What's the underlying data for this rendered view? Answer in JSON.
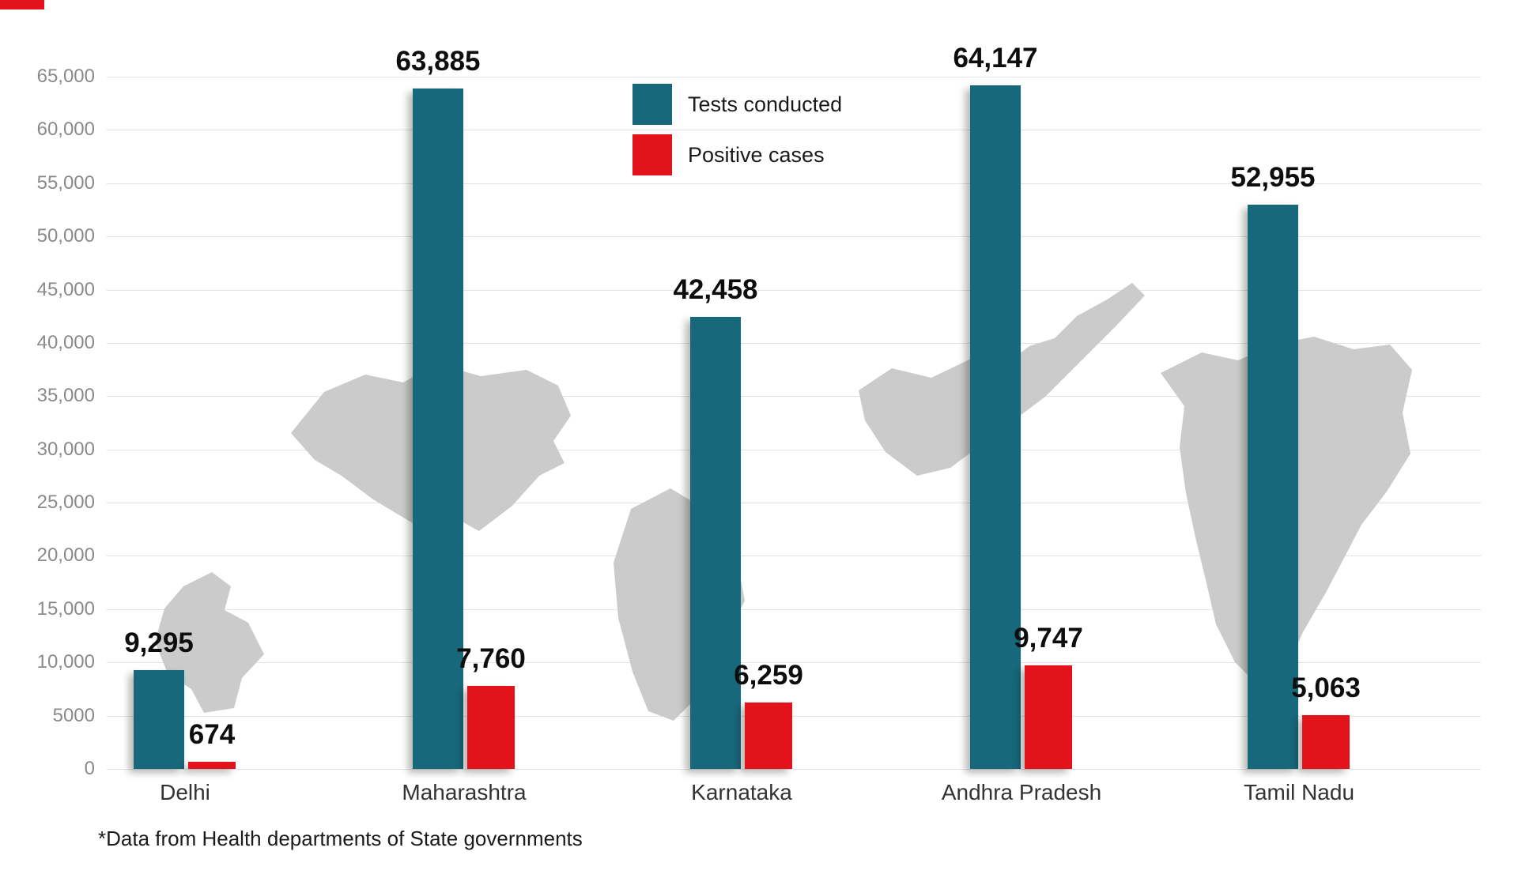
{
  "chart_data": {
    "type": "bar",
    "title": "",
    "categories": [
      "Delhi",
      "Maharashtra",
      "Karnataka",
      "Andhra Pradesh",
      "Tamil Nadu"
    ],
    "series": [
      {
        "name": "Tests conducted",
        "color": "#17687a",
        "values": [
          9295,
          63885,
          42458,
          64147,
          52955
        ],
        "labels": [
          "9,295",
          "63,885",
          "42,458",
          "64,147",
          "52,955"
        ]
      },
      {
        "name": "Positive cases",
        "color": "#e3131b",
        "values": [
          674,
          7760,
          6259,
          9747,
          5063
        ],
        "labels": [
          "674",
          "7,760",
          "6,259",
          "9,747",
          "5,063"
        ]
      }
    ],
    "ylim": [
      0,
      65000
    ],
    "ytick_step": 5000,
    "ytick_labels": [
      "0",
      "5000",
      "10,000",
      "15,000",
      "20,000",
      "25,000",
      "30,000",
      "35,000",
      "40,000",
      "45,000",
      "50,000",
      "55,000",
      "60,000",
      "65,000"
    ],
    "grid": true,
    "legend_position": "top-center",
    "footnote": "*Data from Health departments of State governments"
  },
  "legend": {
    "items": [
      {
        "label": "Tests conducted",
        "color": "#17687a"
      },
      {
        "label": "Positive cases",
        "color": "#e3131b"
      }
    ]
  },
  "colors": {
    "teal": "#17687a",
    "red": "#e3131b",
    "grid": "#e3e3e3",
    "map_silhouette": "#cbcbcb",
    "background": "#ffffff"
  }
}
